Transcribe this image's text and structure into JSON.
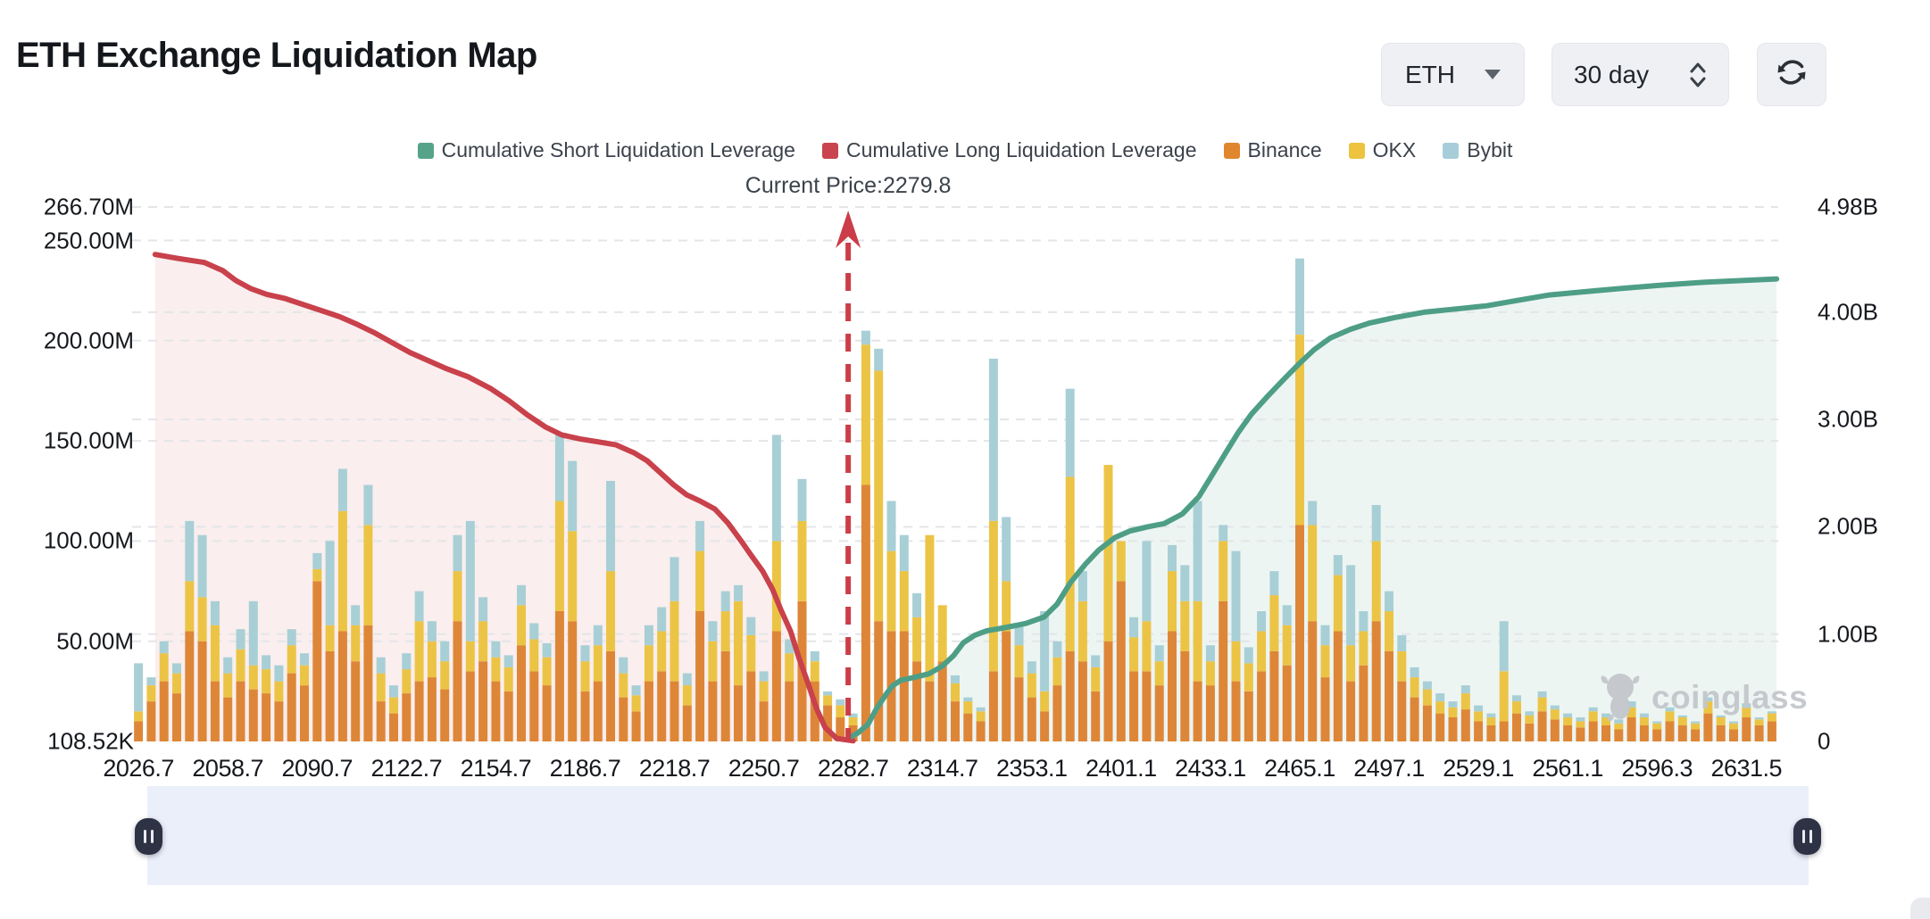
{
  "header": {
    "title": "ETH Exchange Liquidation Map"
  },
  "controls": {
    "symbol": "ETH",
    "period": "30 day"
  },
  "watermark": {
    "text": "coinglass"
  },
  "chart_data": {
    "type": "mixed-bar-line",
    "title": "ETH Exchange Liquidation Map",
    "current_price": 2279.8,
    "current_price_label": "Current Price:2279.8",
    "current_price_frac": 0.435,
    "legend": [
      {
        "label": "Cumulative Short Liquidation Leverage",
        "color": "#57a38a"
      },
      {
        "label": "Cumulative Long Liquidation Leverage",
        "color": "#c9444e"
      },
      {
        "label": "Binance",
        "color": "#e0862f"
      },
      {
        "label": "OKX",
        "color": "#edc33f"
      },
      {
        "label": "Bybit",
        "color": "#a7ced8"
      }
    ],
    "colors": {
      "binance": "#de8638",
      "okx": "#ecc445",
      "bybit": "#a8cfd6",
      "short_line": "#4e9e86",
      "short_fill": "rgba(79,158,135,0.10)",
      "long_line": "#c8414b",
      "long_fill": "rgba(203,61,72,0.09)",
      "grid": "#e3e5e9",
      "price_line": "#cb3d48"
    },
    "left_axis": {
      "unit": "M",
      "max": 266.7,
      "ticks": [
        [
          "108.52K",
          0.10852
        ],
        [
          "50.00M",
          50
        ],
        [
          "100.00M",
          100
        ],
        [
          "150.00M",
          150
        ],
        [
          "200.00M",
          200
        ],
        [
          "250.00M",
          250
        ],
        [
          "266.70M",
          266.7
        ]
      ]
    },
    "right_axis": {
      "unit": "B",
      "max": 4.98,
      "ticks": [
        [
          "0",
          0
        ],
        [
          "1.00B",
          1
        ],
        [
          "2.00B",
          2
        ],
        [
          "3.00B",
          3
        ],
        [
          "4.00B",
          4
        ],
        [
          "4.98B",
          4.98
        ]
      ]
    },
    "x_tick_labels": [
      "2026.7",
      "2058.7",
      "2090.7",
      "2122.7",
      "2154.7",
      "2186.7",
      "2218.7",
      "2250.7",
      "2282.7",
      "2314.7",
      "2353.1",
      "2401.1",
      "2433.1",
      "2465.1",
      "2497.1",
      "2529.1",
      "2561.1",
      "2596.3",
      "2631.5"
    ],
    "x_label_every_n_bars": 7,
    "bar_stack_order": [
      "binance",
      "okx",
      "bybit"
    ],
    "bars_unit": "M",
    "bars": [
      [
        10,
        5,
        24
      ],
      [
        20,
        8,
        4
      ],
      [
        30,
        14,
        6
      ],
      [
        24,
        10,
        5
      ],
      [
        55,
        25,
        30
      ],
      [
        50,
        22,
        31
      ],
      [
        30,
        28,
        12
      ],
      [
        22,
        12,
        8
      ],
      [
        30,
        16,
        10
      ],
      [
        26,
        12,
        32
      ],
      [
        24,
        12,
        7
      ],
      [
        20,
        10,
        8
      ],
      [
        34,
        14,
        8
      ],
      [
        28,
        10,
        6
      ],
      [
        80,
        6,
        8
      ],
      [
        45,
        13,
        42
      ],
      [
        55,
        60,
        21
      ],
      [
        40,
        18,
        10
      ],
      [
        58,
        50,
        20
      ],
      [
        20,
        14,
        8
      ],
      [
        14,
        8,
        6
      ],
      [
        24,
        12,
        8
      ],
      [
        30,
        30,
        15
      ],
      [
        32,
        18,
        10
      ],
      [
        26,
        14,
        10
      ],
      [
        60,
        25,
        18
      ],
      [
        35,
        15,
        60
      ],
      [
        40,
        20,
        12
      ],
      [
        30,
        12,
        8
      ],
      [
        25,
        12,
        6
      ],
      [
        48,
        20,
        10
      ],
      [
        35,
        16,
        8
      ],
      [
        28,
        14,
        7
      ],
      [
        65,
        55,
        33
      ],
      [
        60,
        45,
        35
      ],
      [
        25,
        15,
        8
      ],
      [
        30,
        18,
        10
      ],
      [
        45,
        40,
        45
      ],
      [
        22,
        12,
        8
      ],
      [
        15,
        8,
        5
      ],
      [
        30,
        18,
        10
      ],
      [
        35,
        20,
        12
      ],
      [
        30,
        40,
        22
      ],
      [
        18,
        10,
        6
      ],
      [
        65,
        30,
        15
      ],
      [
        30,
        20,
        10
      ],
      [
        45,
        20,
        10
      ],
      [
        28,
        42,
        8
      ],
      [
        35,
        18,
        9
      ],
      [
        20,
        10,
        5
      ],
      [
        55,
        45,
        53
      ],
      [
        30,
        14,
        7
      ],
      [
        70,
        40,
        21
      ],
      [
        30,
        10,
        5
      ],
      [
        18,
        5,
        2
      ],
      [
        12,
        6,
        3
      ],
      [
        8,
        4,
        2
      ],
      [
        128,
        70,
        7
      ],
      [
        60,
        125,
        11
      ],
      [
        55,
        40,
        25
      ],
      [
        55,
        30,
        18
      ],
      [
        40,
        22,
        12
      ],
      [
        30,
        73,
        0
      ],
      [
        40,
        28,
        0
      ],
      [
        20,
        9,
        4
      ],
      [
        14,
        6,
        2
      ],
      [
        10,
        5,
        2
      ],
      [
        35,
        75,
        81
      ],
      [
        55,
        25,
        32
      ],
      [
        32,
        16,
        10
      ],
      [
        22,
        12,
        6
      ],
      [
        15,
        10,
        40
      ],
      [
        28,
        14,
        8
      ],
      [
        45,
        87,
        44
      ],
      [
        40,
        30,
        15
      ],
      [
        25,
        12,
        6
      ],
      [
        50,
        88,
        0
      ],
      [
        80,
        20,
        0
      ],
      [
        35,
        17,
        10
      ],
      [
        35,
        25,
        40
      ],
      [
        28,
        12,
        8
      ],
      [
        55,
        30,
        13
      ],
      [
        45,
        25,
        18
      ],
      [
        30,
        40,
        50
      ],
      [
        28,
        12,
        8
      ],
      [
        70,
        30,
        8
      ],
      [
        30,
        20,
        45
      ],
      [
        25,
        14,
        8
      ],
      [
        35,
        20,
        10
      ],
      [
        45,
        28,
        12
      ],
      [
        38,
        20,
        10
      ],
      [
        108,
        95,
        38
      ],
      [
        60,
        48,
        12
      ],
      [
        32,
        16,
        10
      ],
      [
        55,
        28,
        10
      ],
      [
        30,
        18,
        40
      ],
      [
        38,
        17,
        10
      ],
      [
        60,
        40,
        18
      ],
      [
        45,
        20,
        10
      ],
      [
        30,
        15,
        8
      ],
      [
        22,
        10,
        5
      ],
      [
        18,
        8,
        4
      ],
      [
        14,
        6,
        4
      ],
      [
        12,
        5,
        3
      ],
      [
        16,
        8,
        4
      ],
      [
        10,
        5,
        3
      ],
      [
        8,
        4,
        2
      ],
      [
        10,
        25,
        25
      ],
      [
        14,
        6,
        3
      ],
      [
        9,
        4,
        2
      ],
      [
        15,
        7,
        3
      ],
      [
        11,
        5,
        2
      ],
      [
        8,
        4,
        2
      ],
      [
        7,
        3,
        2
      ],
      [
        10,
        5,
        2
      ],
      [
        8,
        4,
        2
      ],
      [
        6,
        3,
        2
      ],
      [
        12,
        5,
        3
      ],
      [
        8,
        4,
        2
      ],
      [
        6,
        3,
        1
      ],
      [
        10,
        5,
        2
      ],
      [
        8,
        4,
        1
      ],
      [
        6,
        3,
        1
      ],
      [
        14,
        6,
        2
      ],
      [
        8,
        4,
        1
      ],
      [
        6,
        3,
        1
      ],
      [
        12,
        5,
        2
      ],
      [
        8,
        3,
        1
      ],
      [
        10,
        4,
        1
      ]
    ],
    "long_line_unit": "M",
    "long_line": [
      [
        0.014,
        243
      ],
      [
        0.028,
        241
      ],
      [
        0.044,
        239
      ],
      [
        0.055,
        235
      ],
      [
        0.063,
        230
      ],
      [
        0.072,
        226
      ],
      [
        0.082,
        223
      ],
      [
        0.093,
        221
      ],
      [
        0.104,
        218
      ],
      [
        0.115,
        215
      ],
      [
        0.126,
        212
      ],
      [
        0.137,
        208
      ],
      [
        0.147,
        204
      ],
      [
        0.158,
        199
      ],
      [
        0.169,
        194
      ],
      [
        0.18,
        190
      ],
      [
        0.191,
        186
      ],
      [
        0.204,
        182
      ],
      [
        0.218,
        176
      ],
      [
        0.229,
        170
      ],
      [
        0.24,
        163
      ],
      [
        0.251,
        157
      ],
      [
        0.261,
        153
      ],
      [
        0.272,
        151
      ],
      [
        0.283,
        149.5
      ],
      [
        0.294,
        148
      ],
      [
        0.305,
        144
      ],
      [
        0.313,
        140
      ],
      [
        0.321,
        134
      ],
      [
        0.329,
        128
      ],
      [
        0.337,
        123
      ],
      [
        0.345,
        120
      ],
      [
        0.354,
        116
      ],
      [
        0.362,
        109
      ],
      [
        0.37,
        100
      ],
      [
        0.376,
        93
      ],
      [
        0.383,
        85
      ],
      [
        0.389,
        76
      ],
      [
        0.394,
        66
      ],
      [
        0.4,
        55
      ],
      [
        0.405,
        42
      ],
      [
        0.411,
        28
      ],
      [
        0.416,
        16
      ],
      [
        0.421,
        7
      ],
      [
        0.428,
        1.5
      ],
      [
        0.438,
        0.3
      ]
    ],
    "short_line_unit": "B",
    "short_line": [
      [
        0.435,
        0.03
      ],
      [
        0.441,
        0.08
      ],
      [
        0.447,
        0.16
      ],
      [
        0.452,
        0.3
      ],
      [
        0.458,
        0.44
      ],
      [
        0.462,
        0.52
      ],
      [
        0.467,
        0.57
      ],
      [
        0.476,
        0.6
      ],
      [
        0.484,
        0.63
      ],
      [
        0.492,
        0.7
      ],
      [
        0.499,
        0.8
      ],
      [
        0.505,
        0.92
      ],
      [
        0.512,
        0.99
      ],
      [
        0.519,
        1.03
      ],
      [
        0.53,
        1.06
      ],
      [
        0.543,
        1.1
      ],
      [
        0.554,
        1.16
      ],
      [
        0.562,
        1.28
      ],
      [
        0.57,
        1.48
      ],
      [
        0.579,
        1.65
      ],
      [
        0.587,
        1.78
      ],
      [
        0.597,
        1.9
      ],
      [
        0.606,
        1.96
      ],
      [
        0.617,
        2.0
      ],
      [
        0.627,
        2.03
      ],
      [
        0.638,
        2.12
      ],
      [
        0.648,
        2.28
      ],
      [
        0.656,
        2.48
      ],
      [
        0.664,
        2.68
      ],
      [
        0.672,
        2.88
      ],
      [
        0.68,
        3.05
      ],
      [
        0.69,
        3.22
      ],
      [
        0.7,
        3.38
      ],
      [
        0.709,
        3.52
      ],
      [
        0.718,
        3.65
      ],
      [
        0.728,
        3.76
      ],
      [
        0.74,
        3.84
      ],
      [
        0.752,
        3.9
      ],
      [
        0.767,
        3.95
      ],
      [
        0.785,
        4.0
      ],
      [
        0.804,
        4.03
      ],
      [
        0.823,
        4.06
      ],
      [
        0.842,
        4.11
      ],
      [
        0.861,
        4.16
      ],
      [
        0.882,
        4.19
      ],
      [
        0.904,
        4.22
      ],
      [
        0.928,
        4.25
      ],
      [
        0.956,
        4.28
      ],
      [
        0.999,
        4.31
      ]
    ]
  }
}
